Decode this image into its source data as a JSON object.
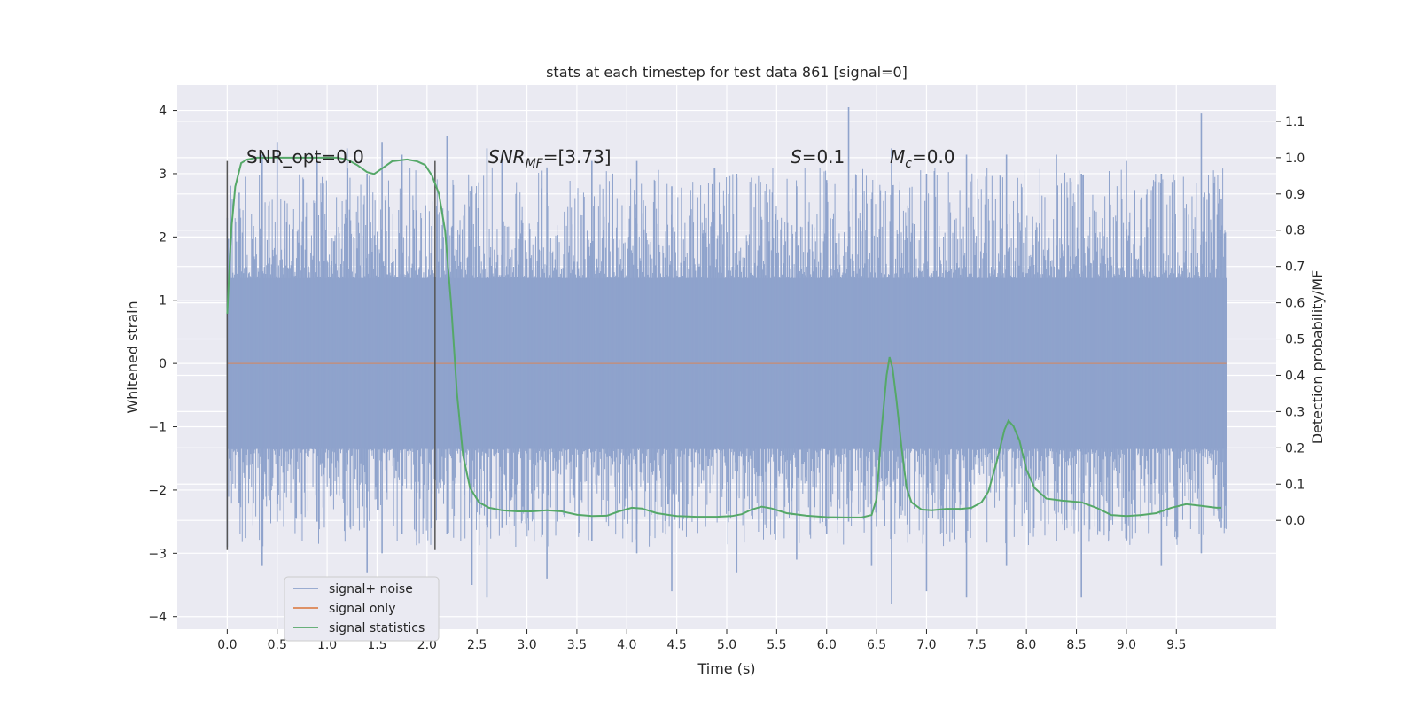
{
  "chart_data": {
    "type": "line",
    "title": "stats at each timestep for test data 861 [signal=0]",
    "xlabel": "Time (s)",
    "ylabel": "Whitened strain",
    "y2label": "Detection probability/MF",
    "xlim": [
      -0.5,
      10.5
    ],
    "ylim": [
      -4.2,
      4.4
    ],
    "y2lim": [
      -0.3,
      1.2
    ],
    "xticks": [
      0.0,
      0.5,
      1.0,
      1.5,
      2.0,
      2.5,
      3.0,
      3.5,
      4.0,
      4.5,
      5.0,
      5.5,
      6.0,
      6.5,
      7.0,
      7.5,
      8.0,
      8.5,
      9.0,
      9.5
    ],
    "xtick_labels": [
      "0.0",
      "0.5",
      "1.0",
      "1.5",
      "2.0",
      "2.5",
      "3.0",
      "3.5",
      "4.0",
      "4.5",
      "5.0",
      "5.5",
      "6.0",
      "6.5",
      "7.0",
      "7.5",
      "8.0",
      "8.5",
      "9.0",
      "9.5"
    ],
    "yticks": [
      4,
      3,
      2,
      1,
      0,
      -1,
      -2,
      -3,
      -4
    ],
    "ytick_labels": [
      "4",
      "3",
      "2",
      "1",
      "0",
      "−1",
      "−2",
      "−3",
      "−4"
    ],
    "y2ticks": [
      1.1,
      1.0,
      0.9,
      0.8,
      0.7,
      0.6,
      0.5,
      0.4,
      0.3,
      0.2,
      0.1,
      0.0
    ],
    "y2tick_labels": [
      "1.1",
      "1.0",
      "0.9",
      "0.8",
      "0.7",
      "0.6",
      "0.5",
      "0.4",
      "0.3",
      "0.2",
      "0.1",
      "0.0"
    ],
    "grid": true,
    "legend_position": "lower-left",
    "annotations": {
      "snr_opt": "SNR_opt=0.0",
      "snr_mf_main": "SNR",
      "snr_mf_sub": "MF",
      "snr_mf_value": "=[3.73]",
      "s_label": "S",
      "s_value": "=0.1",
      "mc_main": "M",
      "mc_sub": "c",
      "mc_value": "=0.0"
    },
    "vlines": [
      0.0,
      2.08
    ],
    "vline_range": [
      -2.95,
      3.2
    ],
    "series": [
      {
        "name": "signal+ noise",
        "color": "#8fa3cc",
        "kind": "noise",
        "time_range": [
          0.0,
          10.0
        ],
        "spikes": [
          [
            0.0,
            2.3,
            -2.9
          ],
          [
            0.12,
            2.7,
            -2.2
          ],
          [
            0.35,
            3.3,
            -3.2
          ],
          [
            0.5,
            3.5,
            -2.5
          ],
          [
            0.9,
            3.2,
            -2.5
          ],
          [
            1.2,
            3.4,
            -2.4
          ],
          [
            1.4,
            3.0,
            -3.3
          ],
          [
            1.55,
            3.5,
            -3.0
          ],
          [
            1.75,
            3.3,
            -2.7
          ],
          [
            2.2,
            3.6,
            -2.7
          ],
          [
            2.45,
            2.8,
            -3.5
          ],
          [
            2.6,
            3.4,
            -3.7
          ],
          [
            2.75,
            3.3,
            -2.6
          ],
          [
            3.2,
            3.1,
            -3.4
          ],
          [
            3.65,
            3.2,
            -2.8
          ],
          [
            4.1,
            3.2,
            -3.0
          ],
          [
            4.45,
            2.8,
            -3.6
          ],
          [
            5.1,
            3.0,
            -3.3
          ],
          [
            5.7,
            2.8,
            -3.1
          ],
          [
            6.0,
            2.9,
            -2.7
          ],
          [
            6.22,
            4.05,
            -2.5
          ],
          [
            6.45,
            2.6,
            -3.2
          ],
          [
            6.65,
            3.4,
            -3.8
          ],
          [
            7.0,
            3.0,
            -3.6
          ],
          [
            7.4,
            3.3,
            -3.7
          ],
          [
            7.8,
            3.3,
            -3.2
          ],
          [
            8.3,
            3.3,
            -2.8
          ],
          [
            8.55,
            3.0,
            -3.7
          ],
          [
            9.0,
            3.2,
            -2.8
          ],
          [
            9.35,
            3.0,
            -3.2
          ],
          [
            9.75,
            3.95,
            -3.0
          ],
          [
            9.95,
            2.6,
            -2.6
          ]
        ]
      },
      {
        "name": "signal only",
        "color": "#dd8452",
        "kind": "flat",
        "time_range": [
          0.0,
          10.0
        ],
        "value": 0.0
      },
      {
        "name": "signal statistics",
        "color": "#55a868",
        "kind": "curve",
        "points": [
          [
            0.0,
            0.57
          ],
          [
            0.04,
            0.8
          ],
          [
            0.08,
            0.92
          ],
          [
            0.14,
            0.985
          ],
          [
            0.2,
            0.995
          ],
          [
            0.3,
            1.0
          ],
          [
            0.5,
            1.0
          ],
          [
            0.7,
            1.0
          ],
          [
            0.9,
            1.0
          ],
          [
            1.1,
            1.0
          ],
          [
            1.2,
            0.995
          ],
          [
            1.3,
            0.98
          ],
          [
            1.4,
            0.96
          ],
          [
            1.47,
            0.955
          ],
          [
            1.55,
            0.97
          ],
          [
            1.65,
            0.99
          ],
          [
            1.8,
            0.995
          ],
          [
            1.9,
            0.99
          ],
          [
            1.98,
            0.98
          ],
          [
            2.05,
            0.95
          ],
          [
            2.12,
            0.9
          ],
          [
            2.18,
            0.8
          ],
          [
            2.24,
            0.6
          ],
          [
            2.3,
            0.35
          ],
          [
            2.36,
            0.18
          ],
          [
            2.43,
            0.09
          ],
          [
            2.52,
            0.05
          ],
          [
            2.62,
            0.035
          ],
          [
            2.75,
            0.028
          ],
          [
            2.9,
            0.025
          ],
          [
            3.05,
            0.025
          ],
          [
            3.2,
            0.028
          ],
          [
            3.35,
            0.025
          ],
          [
            3.5,
            0.016
          ],
          [
            3.65,
            0.012
          ],
          [
            3.8,
            0.013
          ],
          [
            3.92,
            0.025
          ],
          [
            4.05,
            0.035
          ],
          [
            4.15,
            0.033
          ],
          [
            4.3,
            0.02
          ],
          [
            4.5,
            0.012
          ],
          [
            4.7,
            0.01
          ],
          [
            4.9,
            0.01
          ],
          [
            5.05,
            0.012
          ],
          [
            5.15,
            0.017
          ],
          [
            5.25,
            0.03
          ],
          [
            5.35,
            0.038
          ],
          [
            5.45,
            0.033
          ],
          [
            5.6,
            0.02
          ],
          [
            5.8,
            0.013
          ],
          [
            6.0,
            0.009
          ],
          [
            6.2,
            0.008
          ],
          [
            6.35,
            0.008
          ],
          [
            6.45,
            0.015
          ],
          [
            6.5,
            0.06
          ],
          [
            6.55,
            0.25
          ],
          [
            6.6,
            0.4
          ],
          [
            6.63,
            0.45
          ],
          [
            6.66,
            0.42
          ],
          [
            6.7,
            0.33
          ],
          [
            6.75,
            0.2
          ],
          [
            6.8,
            0.09
          ],
          [
            6.85,
            0.05
          ],
          [
            6.95,
            0.03
          ],
          [
            7.05,
            0.028
          ],
          [
            7.2,
            0.032
          ],
          [
            7.35,
            0.032
          ],
          [
            7.45,
            0.035
          ],
          [
            7.55,
            0.05
          ],
          [
            7.62,
            0.08
          ],
          [
            7.7,
            0.16
          ],
          [
            7.78,
            0.25
          ],
          [
            7.82,
            0.275
          ],
          [
            7.87,
            0.26
          ],
          [
            7.93,
            0.22
          ],
          [
            8.0,
            0.14
          ],
          [
            8.08,
            0.09
          ],
          [
            8.2,
            0.06
          ],
          [
            8.35,
            0.055
          ],
          [
            8.55,
            0.05
          ],
          [
            8.7,
            0.035
          ],
          [
            8.85,
            0.015
          ],
          [
            9.0,
            0.012
          ],
          [
            9.15,
            0.015
          ],
          [
            9.3,
            0.02
          ],
          [
            9.45,
            0.035
          ],
          [
            9.6,
            0.045
          ],
          [
            9.75,
            0.04
          ],
          [
            9.9,
            0.035
          ],
          [
            9.95,
            0.035
          ]
        ]
      }
    ]
  }
}
